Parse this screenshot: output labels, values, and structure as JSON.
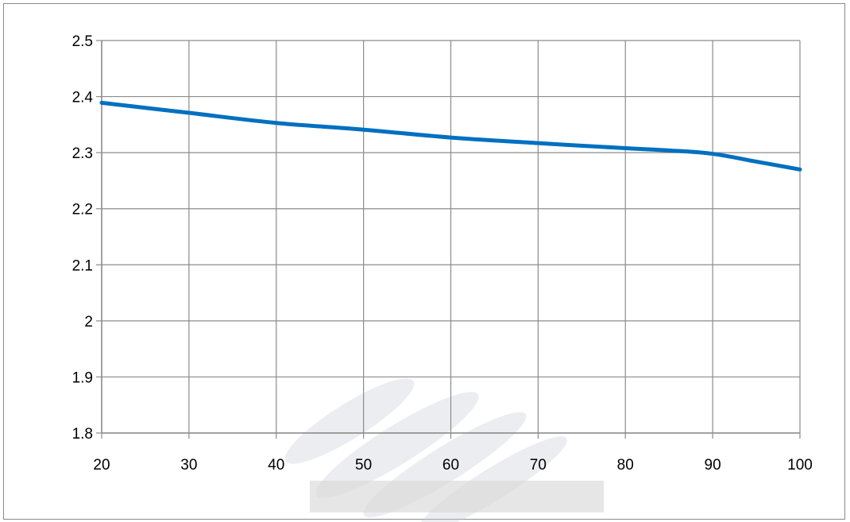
{
  "chart_data": {
    "type": "line",
    "title": "",
    "xlabel": "",
    "ylabel": "",
    "xlim": [
      20,
      100
    ],
    "ylim": [
      1.8,
      2.5
    ],
    "x_ticks": [
      20,
      30,
      40,
      50,
      60,
      70,
      80,
      90,
      100
    ],
    "x_tick_labels": [
      "20",
      "30",
      "40",
      "50",
      "60",
      "70",
      "80",
      "90",
      "100"
    ],
    "y_ticks": [
      1.8,
      1.9,
      2.0,
      2.1,
      2.2,
      2.3,
      2.4,
      2.5
    ],
    "y_tick_labels": [
      "1.8",
      "1.9",
      "2",
      "2.1",
      "2.2",
      "2.3",
      "2.4",
      "2.5"
    ],
    "grid": true,
    "legend": "none",
    "series": [
      {
        "color": "#0070c0",
        "x": [
          20,
          30,
          40,
          50,
          60,
          70,
          80,
          85,
          90,
          95,
          100
        ],
        "y": [
          2.389,
          2.371,
          2.353,
          2.341,
          2.327,
          2.317,
          2.308,
          2.304,
          2.298,
          2.284,
          2.27
        ]
      }
    ]
  }
}
